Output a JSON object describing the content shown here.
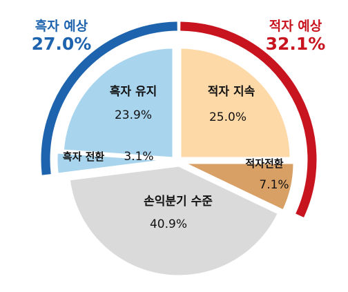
{
  "callouts": {
    "left": {
      "label": "흑자 예상",
      "value": "27.0%",
      "color": "#1e63ad"
    },
    "right": {
      "label": "적자 예상",
      "value": "32.1%",
      "color": "#c8141e"
    }
  },
  "chart_data": {
    "type": "pie",
    "title": "",
    "start": "top, clockwise",
    "slices": [
      {
        "name": "적자 지속",
        "value": 25.0,
        "label": "25.0%",
        "color": "#fdd9a8"
      },
      {
        "name": "적자전환",
        "value": 7.1,
        "label": "7.1%",
        "color": "#d9a066"
      },
      {
        "name": "손익분기 수준",
        "value": 40.9,
        "label": "40.9%",
        "color": "#dadada"
      },
      {
        "name": "흑자 전환",
        "value": 3.1,
        "label": "3.1%",
        "color": "#a9d4ee"
      },
      {
        "name": "흑자 유지",
        "value": 23.9,
        "label": "23.9%",
        "color": "#a9d4ee"
      }
    ],
    "groups": [
      {
        "name": "흑자 예상",
        "value": 27.0,
        "members": [
          "흑자 전환",
          "흑자 유지"
        ],
        "color": "#1e63ad"
      },
      {
        "name": "적자 예상",
        "value": 32.1,
        "members": [
          "적자 지속",
          "적자전환"
        ],
        "color": "#c8141e"
      }
    ]
  }
}
